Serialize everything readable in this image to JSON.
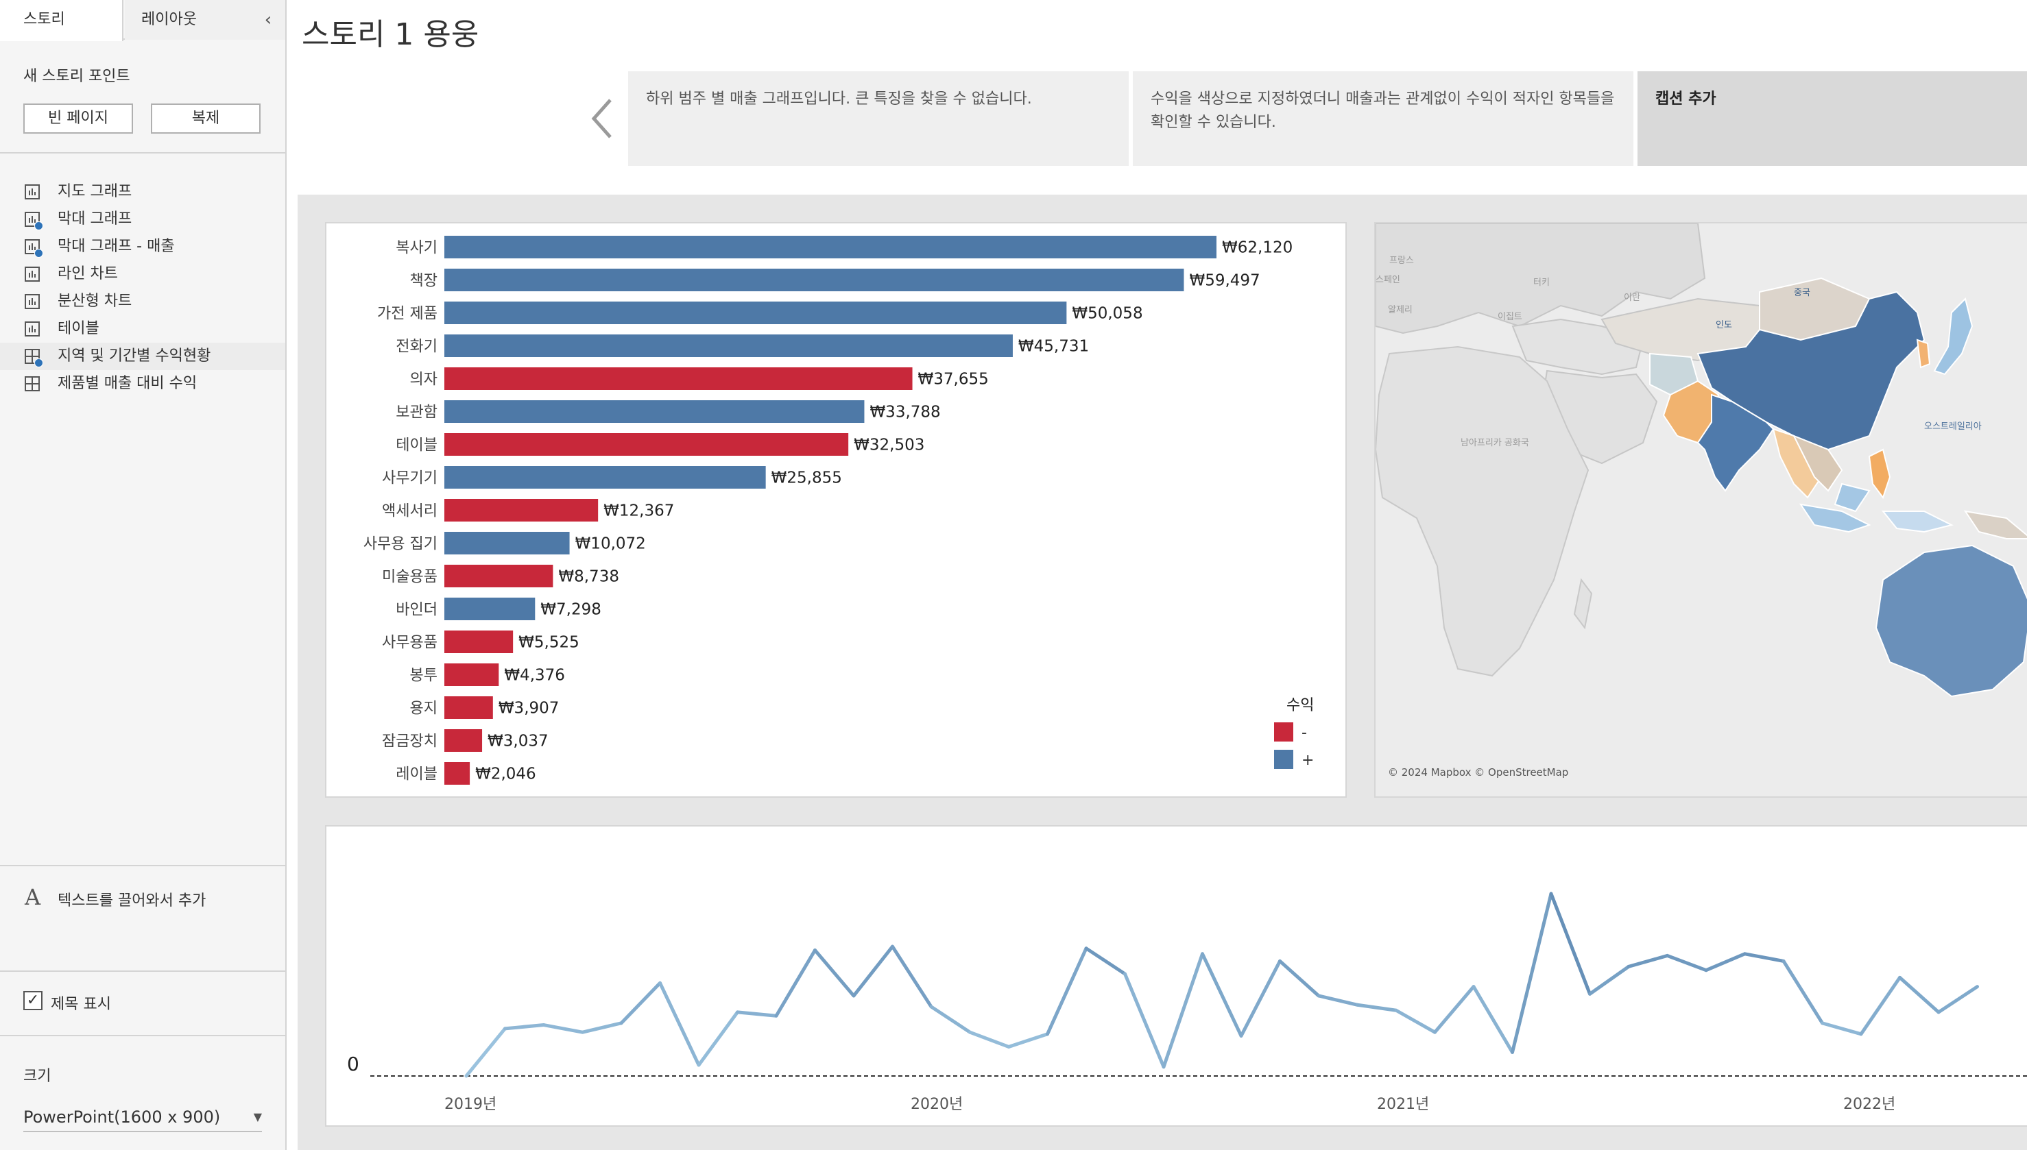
{
  "sidebar": {
    "tabs": [
      {
        "label": "스토리"
      },
      {
        "label": "레이아웃"
      }
    ],
    "new_story_point": "새 스토리 포인트",
    "blank_page_label": "빈 페이지",
    "duplicate_label": "복제",
    "sheets": [
      {
        "label": "지도 그래프",
        "icon": "bar-chart-icon",
        "used": false
      },
      {
        "label": "막대 그래프",
        "icon": "bar-chart-icon",
        "used": true
      },
      {
        "label": "막대 그래프 - 매출",
        "icon": "bar-chart-icon",
        "used": true
      },
      {
        "label": "라인 차트",
        "icon": "bar-chart-icon",
        "used": false
      },
      {
        "label": "분산형 차트",
        "icon": "bar-chart-icon",
        "used": false
      },
      {
        "label": "테이블",
        "icon": "bar-chart-icon",
        "used": false
      },
      {
        "label": "지역 및 기간별 수익현황",
        "icon": "dashboard-icon",
        "used": true
      },
      {
        "label": "제품별 매출 대비 수익",
        "icon": "dashboard-icon",
        "used": false
      }
    ],
    "drag_text_label": "텍스트를 끌어와서 추가",
    "show_title_label": "제목 표시",
    "show_title_checked": true,
    "size_label": "크기",
    "size_value": "PowerPoint(1600 x 900)"
  },
  "story": {
    "title": "스토리 1 용웅",
    "captions": [
      "하위 범주 별 매출 그래프입니다. 큰 특징을 찾을 수 없습니다.",
      "수익을 색상으로 지정하였더니 매출과는 관계없이 수익이 적자인 항목들을 확인할 수 있습니다.",
      "캡션 추가"
    ]
  },
  "colors": {
    "negative": "#c8283a",
    "positive": "#4e79a7"
  },
  "chart_data": [
    {
      "type": "bar",
      "orientation": "horizontal",
      "categories": [
        "복사기",
        "책장",
        "가전 제품",
        "전화기",
        "의자",
        "보관함",
        "테이블",
        "사무기기",
        "액세서리",
        "사무용 집기",
        "미술용품",
        "바인더",
        "사무용품",
        "봉투",
        "용지",
        "잠금장치",
        "레이블"
      ],
      "values": [
        62120,
        59497,
        50058,
        45731,
        37655,
        33788,
        32503,
        25855,
        12367,
        10072,
        8738,
        7298,
        5525,
        4376,
        3907,
        3037,
        2046
      ],
      "labels": [
        "₩62,120",
        "₩59,497",
        "₩50,058",
        "₩45,731",
        "₩37,655",
        "₩33,788",
        "₩32,503",
        "₩25,855",
        "₩12,367",
        "₩10,072",
        "₩8,738",
        "₩7,298",
        "₩5,525",
        "₩4,376",
        "₩3,907",
        "₩3,037",
        "₩2,046"
      ],
      "profit_sign": [
        "+",
        "+",
        "+",
        "+",
        "-",
        "+",
        "-",
        "+",
        "-",
        "+",
        "-",
        "+",
        "-",
        "-",
        "-",
        "-",
        "-"
      ],
      "legend": {
        "title": "수익",
        "items": [
          "-",
          "+"
        ],
        "position": "bottom-right"
      }
    },
    {
      "type": "line",
      "x_ticks": [
        "2019년",
        "2020년",
        "2021년",
        "2022년"
      ],
      "zero_label": "0",
      "values": [
        0,
        26,
        28,
        24,
        29,
        51,
        6,
        35,
        33,
        69,
        44,
        71,
        38,
        24,
        16,
        23,
        70,
        56,
        5,
        67,
        22,
        63,
        44,
        39,
        36,
        24,
        49,
        13,
        100,
        45,
        60,
        66,
        58,
        67,
        63,
        29,
        23,
        54,
        35,
        49
      ]
    }
  ],
  "map": {
    "attribution": "© 2024 Mapbox © OpenStreetMap",
    "labels": [
      "프랑스",
      "스페인",
      "터키",
      "이란",
      "알제리",
      "이집트",
      "중국",
      "인도",
      "오스트레일리아",
      "남아프리카 공화국"
    ]
  }
}
